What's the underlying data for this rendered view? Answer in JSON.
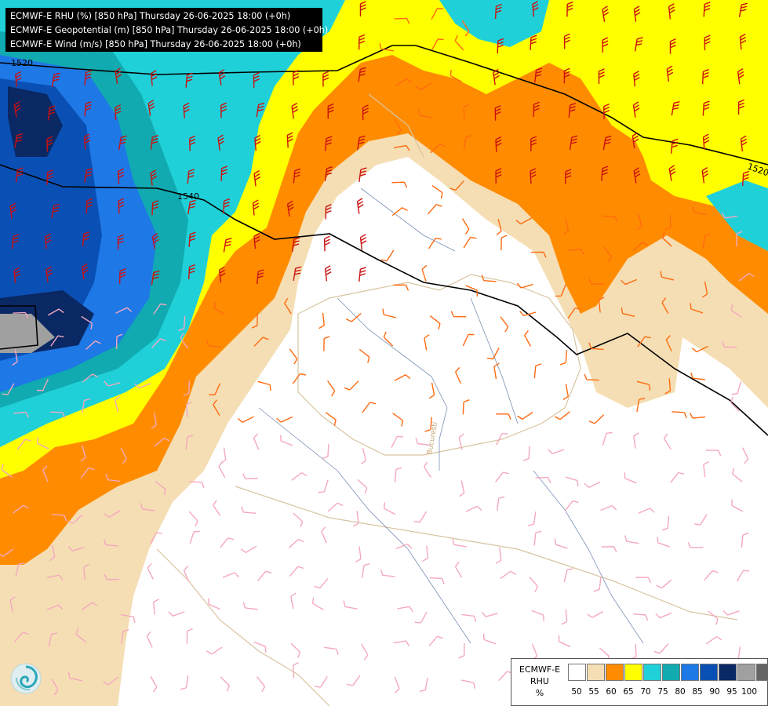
{
  "title_lines": [
    "ECMWF-E RHU (%) [850 hPa] Thursday 26-06-2025 18:00 (+0h)",
    "ECMWF-E Geopotential (m) [850 hPa] Thursday 26-06-2025 18:00 (+0h)",
    "ECMWF-E Wind (m/s) [850 hPa] Thursday 26-06-2025 18:00 (+0h)"
  ],
  "contour_labels": [
    "1520",
    "1540",
    "1520"
  ],
  "city_label": "Bucuresti",
  "legend": {
    "name_lines": [
      "ECMWF-E",
      "RHU",
      "%"
    ],
    "ticks": [
      "50",
      "55",
      "60",
      "65",
      "70",
      "75",
      "80",
      "85",
      "90",
      "95",
      "100"
    ],
    "colors": [
      "#ffffff",
      "#f5deb3",
      "#ff8c00",
      "#ffff00",
      "#20d0d8",
      "#10aab0",
      "#1e78e6",
      "#0a50b4",
      "#0a2864",
      "#a0a0a0",
      "#646464"
    ]
  },
  "logo": "ecmwf-swirl-logo"
}
